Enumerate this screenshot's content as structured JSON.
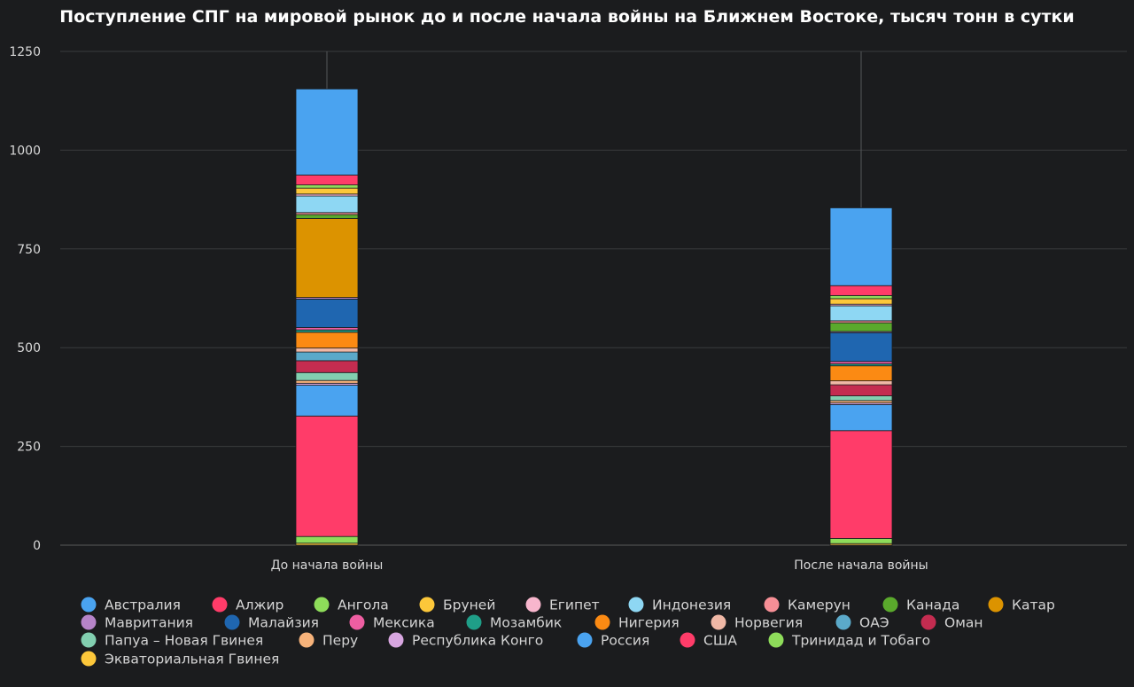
{
  "chart_data": {
    "type": "bar",
    "stacked": true,
    "title": "Поступление СПГ на мировой рынок до и после начала войны на Ближнем Востоке, тысяч тонн в сутки",
    "xlabel": "",
    "ylabel": "",
    "ylim": [
      0,
      1250
    ],
    "yticks": [
      0,
      250,
      500,
      750,
      1000,
      1250
    ],
    "grid": true,
    "legend_position": "bottom",
    "categories": [
      "До начала войны",
      "После начала войны"
    ],
    "series": [
      {
        "name": "Экваториальная Гвинея",
        "color": "#fcc73a",
        "values": [
          5,
          4
        ]
      },
      {
        "name": "Тринидад и Тобаго",
        "color": "#8edc5a",
        "values": [
          17,
          13
        ]
      },
      {
        "name": "США",
        "color": "#ff3c69",
        "values": [
          305,
          273
        ]
      },
      {
        "name": "Россия",
        "color": "#4aa3f0",
        "values": [
          78,
          66
        ]
      },
      {
        "name": "Республика Конго",
        "color": "#d8a6e0",
        "values": [
          5,
          4
        ]
      },
      {
        "name": "Перу",
        "color": "#f6b27a",
        "values": [
          7,
          6
        ]
      },
      {
        "name": "Папуа – Новая Гвинея",
        "color": "#82cfb0",
        "values": [
          20,
          12
        ]
      },
      {
        "name": "Оман",
        "color": "#c42c50",
        "values": [
          30,
          28
        ]
      },
      {
        "name": "ОАЭ",
        "color": "#5ba9c9",
        "values": [
          22,
          0
        ]
      },
      {
        "name": "Норвегия",
        "color": "#f0b8a6",
        "values": [
          10,
          10
        ]
      },
      {
        "name": "Нигерия",
        "color": "#fb8a13",
        "values": [
          40,
          38
        ]
      },
      {
        "name": "Мозамбик",
        "color": "#1f9e88",
        "values": [
          6,
          5
        ]
      },
      {
        "name": "Мексика",
        "color": "#ee5ea2",
        "values": [
          6,
          6
        ]
      },
      {
        "name": "Малайзия",
        "color": "#1f66b0",
        "values": [
          72,
          73
        ]
      },
      {
        "name": "Мавритания",
        "color": "#b684c8",
        "values": [
          4,
          3
        ]
      },
      {
        "name": "Катар",
        "color": "#dc9300",
        "values": [
          200,
          0
        ]
      },
      {
        "name": "Канада",
        "color": "#5aa92c",
        "values": [
          10,
          22
        ]
      },
      {
        "name": "Камерун",
        "color": "#f78f96",
        "values": [
          5,
          5
        ]
      },
      {
        "name": "Индонезия",
        "color": "#8ed7f3",
        "values": [
          42,
          38
        ]
      },
      {
        "name": "Египет",
        "color": "#f8b6cd",
        "values": [
          5,
          4
        ]
      },
      {
        "name": "Бруней",
        "color": "#fcc73a",
        "values": [
          15,
          14
        ]
      },
      {
        "name": "Ангола",
        "color": "#8edc5a",
        "values": [
          8,
          8
        ]
      },
      {
        "name": "Алжир",
        "color": "#ff3c69",
        "values": [
          25,
          25
        ]
      },
      {
        "name": "Австралия",
        "color": "#4aa3f0",
        "values": [
          218,
          197
        ]
      }
    ],
    "legend": [
      {
        "name": "Австралия",
        "color": "#4aa3f0"
      },
      {
        "name": "Алжир",
        "color": "#ff3c69"
      },
      {
        "name": "Ангола",
        "color": "#8edc5a"
      },
      {
        "name": "Бруней",
        "color": "#fcc73a"
      },
      {
        "name": "Египет",
        "color": "#f8b6cd"
      },
      {
        "name": "Индонезия",
        "color": "#8ed7f3"
      },
      {
        "name": "Камерун",
        "color": "#f78f96"
      },
      {
        "name": "Канада",
        "color": "#5aa92c"
      },
      {
        "name": "Катар",
        "color": "#dc9300"
      },
      {
        "name": "Мавритания",
        "color": "#b684c8"
      },
      {
        "name": "Малайзия",
        "color": "#1f66b0"
      },
      {
        "name": "Мексика",
        "color": "#ee5ea2"
      },
      {
        "name": "Мозамбик",
        "color": "#1f9e88"
      },
      {
        "name": "Нигерия",
        "color": "#fb8a13"
      },
      {
        "name": "Норвегия",
        "color": "#f0b8a6"
      },
      {
        "name": "ОАЭ",
        "color": "#5ba9c9"
      },
      {
        "name": "Оман",
        "color": "#c42c50"
      },
      {
        "name": "Папуа – Новая Гвинея",
        "color": "#82cfb0"
      },
      {
        "name": "Перу",
        "color": "#f6b27a"
      },
      {
        "name": "Республика Конго",
        "color": "#d8a6e0"
      },
      {
        "name": "Россия",
        "color": "#4aa3f0"
      },
      {
        "name": "США",
        "color": "#ff3c69"
      },
      {
        "name": "Тринидад и Тобаго",
        "color": "#8edc5a"
      },
      {
        "name": "Экваториальная Гвинея",
        "color": "#fcc73a"
      }
    ]
  }
}
